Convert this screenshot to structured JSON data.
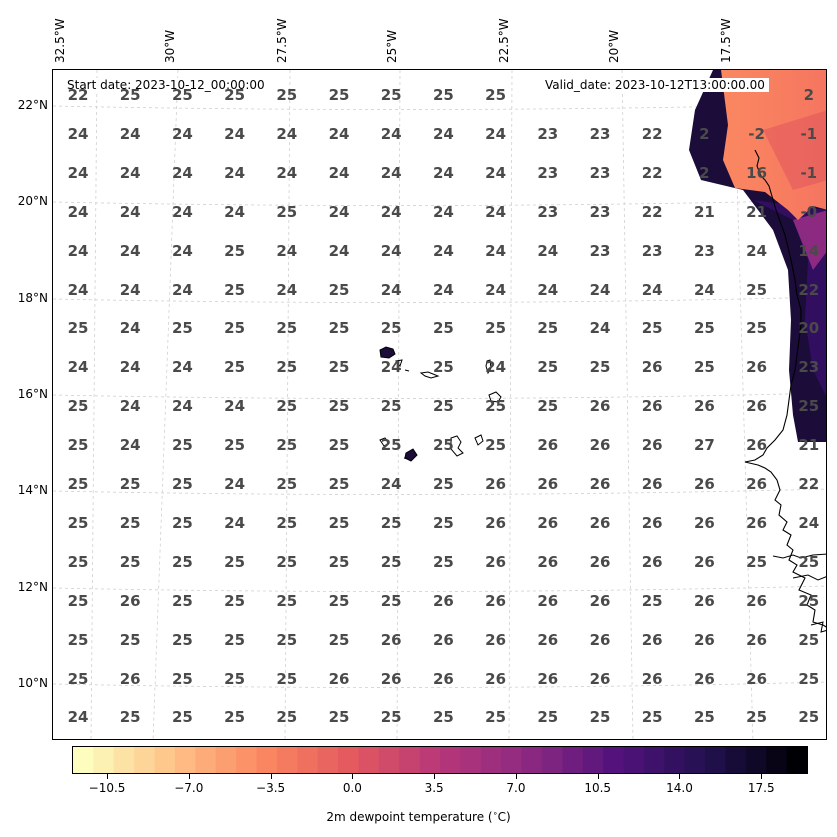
{
  "map": {
    "start_date": "Start date: 2023-10-12_00:00:00",
    "valid_date": "Valid_date: 2023-10-12T13:00:00.00",
    "lon_labels": [
      "32.5°W",
      "30°W",
      "27.5°W",
      "25°W",
      "22.5°W",
      "20°W",
      "17.5°W"
    ],
    "lat_labels": [
      "22°N",
      "20°N",
      "18°N",
      "16°N",
      "14°N",
      "12°N",
      "10°N"
    ],
    "grid_values": [
      [
        "22",
        "25",
        "25",
        "25",
        "25",
        "25",
        "25",
        "25",
        "25",
        "",
        "",
        "",
        "",
        "",
        "2"
      ],
      [
        "24",
        "24",
        "24",
        "24",
        "24",
        "24",
        "24",
        "24",
        "24",
        "23",
        "23",
        "22",
        "2",
        "-2",
        "-1"
      ],
      [
        "24",
        "24",
        "24",
        "24",
        "24",
        "24",
        "24",
        "24",
        "24",
        "23",
        "23",
        "22",
        "2",
        "16",
        "-1"
      ],
      [
        "24",
        "24",
        "24",
        "24",
        "25",
        "24",
        "24",
        "24",
        "24",
        "23",
        "23",
        "22",
        "21",
        "21",
        "-0"
      ],
      [
        "24",
        "24",
        "24",
        "25",
        "24",
        "24",
        "24",
        "24",
        "24",
        "24",
        "23",
        "23",
        "23",
        "24",
        "14"
      ],
      [
        "24",
        "24",
        "24",
        "25",
        "24",
        "25",
        "24",
        "24",
        "24",
        "24",
        "24",
        "24",
        "24",
        "25",
        "22"
      ],
      [
        "25",
        "24",
        "25",
        "25",
        "25",
        "25",
        "25",
        "25",
        "25",
        "25",
        "24",
        "25",
        "25",
        "25",
        "20"
      ],
      [
        "24",
        "24",
        "24",
        "25",
        "25",
        "25",
        "24",
        "25",
        "24",
        "25",
        "25",
        "26",
        "25",
        "26",
        "23"
      ],
      [
        "25",
        "24",
        "24",
        "24",
        "25",
        "25",
        "25",
        "25",
        "25",
        "25",
        "26",
        "26",
        "26",
        "26",
        "25"
      ],
      [
        "25",
        "24",
        "25",
        "25",
        "25",
        "25",
        "25",
        "25",
        "25",
        "26",
        "26",
        "26",
        "27",
        "26",
        "21"
      ],
      [
        "25",
        "25",
        "25",
        "24",
        "25",
        "25",
        "24",
        "25",
        "26",
        "26",
        "26",
        "26",
        "26",
        "26",
        "22"
      ],
      [
        "25",
        "25",
        "25",
        "24",
        "25",
        "25",
        "25",
        "25",
        "26",
        "26",
        "26",
        "26",
        "26",
        "26",
        "24"
      ],
      [
        "25",
        "25",
        "25",
        "25",
        "25",
        "25",
        "25",
        "25",
        "26",
        "26",
        "26",
        "26",
        "26",
        "25",
        "25"
      ],
      [
        "25",
        "26",
        "25",
        "25",
        "25",
        "25",
        "25",
        "26",
        "26",
        "26",
        "26",
        "25",
        "26",
        "26",
        "25"
      ],
      [
        "25",
        "25",
        "25",
        "25",
        "25",
        "25",
        "26",
        "26",
        "26",
        "26",
        "26",
        "26",
        "26",
        "26",
        "25"
      ],
      [
        "25",
        "26",
        "25",
        "25",
        "25",
        "26",
        "26",
        "26",
        "26",
        "26",
        "26",
        "26",
        "26",
        "26",
        "25"
      ],
      [
        "24",
        "25",
        "25",
        "25",
        "25",
        "25",
        "25",
        "25",
        "25",
        "25",
        "25",
        "25",
        "25",
        "25",
        "25"
      ]
    ]
  },
  "colorbar": {
    "label": "2m dewpoint temperature ($^\\circ$C)",
    "ticks": [
      "-10.5",
      "-7.0",
      "-3.5",
      "0.0",
      "3.5",
      "7.0",
      "10.5",
      "14.0",
      "17.5"
    ],
    "range": [
      -12,
      19.5
    ],
    "colormap": "magma_r",
    "colors": [
      "#fcfdbf",
      "#fec287",
      "#fb8861",
      "#e3595e",
      "#b73779",
      "#8c2981",
      "#51127c",
      "#221150",
      "#000004"
    ]
  }
}
